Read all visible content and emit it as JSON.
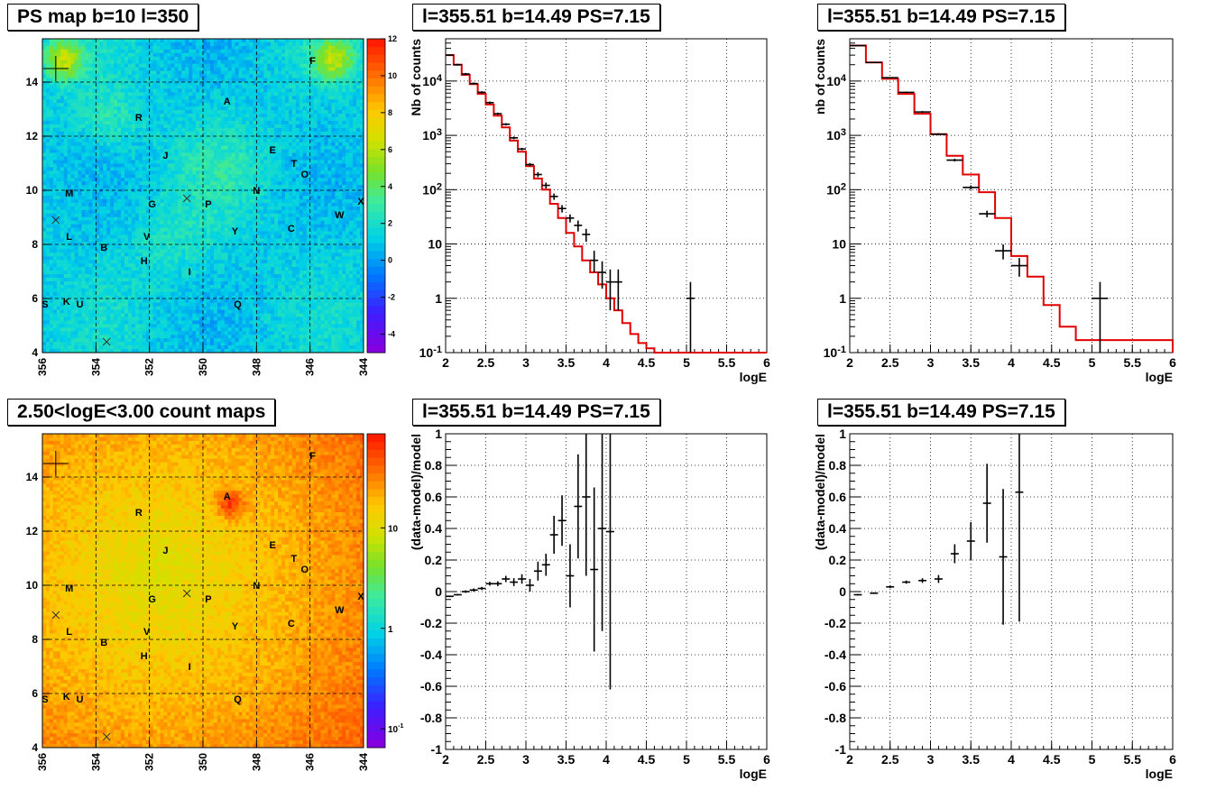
{
  "panels": {
    "map1_title": "PS map b=10 l=350",
    "map2_title": "2.50<logE<3.00 count maps",
    "spec_title": "l=355.51 b=14.49 PS=7.15"
  },
  "chart_data": [
    {
      "type": "heatmap",
      "title": "PS map b=10 l=350",
      "xlim": [
        356,
        344
      ],
      "ylim": [
        4,
        15.6
      ],
      "x_ticks": [
        "356",
        "354",
        "352",
        "350",
        "348",
        "346",
        "344"
      ],
      "y_ticks": [
        "4",
        "6",
        "8",
        "10",
        "12",
        "14"
      ],
      "colorbar_ticks": [
        "-4",
        "-2",
        "0",
        "2",
        "4",
        "6",
        "8",
        "10",
        "12"
      ],
      "colorbar_range": [
        -5,
        12
      ],
      "source_labels": [
        {
          "text": "F",
          "l": 345.9,
          "b": 14.8
        },
        {
          "text": "A",
          "l": 349.1,
          "b": 13.3
        },
        {
          "text": "R",
          "l": 352.4,
          "b": 12.7
        },
        {
          "text": "J",
          "l": 351.4,
          "b": 11.3
        },
        {
          "text": "E",
          "l": 347.4,
          "b": 11.5
        },
        {
          "text": "T",
          "l": 346.6,
          "b": 11.0
        },
        {
          "text": "O",
          "l": 346.2,
          "b": 10.6
        },
        {
          "text": "M",
          "l": 355.0,
          "b": 9.9
        },
        {
          "text": "N",
          "l": 348.0,
          "b": 10.0
        },
        {
          "text": "G",
          "l": 351.9,
          "b": 9.5
        },
        {
          "text": "P",
          "l": 349.8,
          "b": 9.5
        },
        {
          "text": "X",
          "l": 344.1,
          "b": 9.6
        },
        {
          "text": "W",
          "l": 344.9,
          "b": 9.1
        },
        {
          "text": "C",
          "l": 346.7,
          "b": 8.6
        },
        {
          "text": "Y",
          "l": 348.8,
          "b": 8.5
        },
        {
          "text": "V",
          "l": 352.1,
          "b": 8.3
        },
        {
          "text": "L",
          "l": 355.0,
          "b": 8.3
        },
        {
          "text": "B",
          "l": 353.7,
          "b": 7.9
        },
        {
          "text": "H",
          "l": 352.2,
          "b": 7.4
        },
        {
          "text": "I",
          "l": 350.5,
          "b": 7.0
        },
        {
          "text": "S",
          "l": 355.9,
          "b": 5.8
        },
        {
          "text": "K",
          "l": 355.1,
          "b": 5.9
        },
        {
          "text": "U",
          "l": 354.6,
          "b": 5.8
        },
        {
          "text": "Q",
          "l": 348.7,
          "b": 5.8
        }
      ],
      "markers_x": [
        {
          "l": 355.5,
          "b": 8.9
        },
        {
          "l": 350.6,
          "b": 9.7
        },
        {
          "l": 353.6,
          "b": 4.4
        }
      ],
      "marker_plus": {
        "l": 355.5,
        "b": 14.5
      },
      "colormap": "rainbow"
    },
    {
      "type": "heatmap",
      "title": "2.50<logE<3.00 count maps",
      "xlim": [
        356,
        344
      ],
      "ylim": [
        4,
        15.6
      ],
      "x_ticks": [
        "356",
        "354",
        "352",
        "350",
        "348",
        "346",
        "344"
      ],
      "y_ticks": [
        "4",
        "6",
        "8",
        "10",
        "12",
        "14"
      ],
      "colorbar_ticks": [
        "10",
        "1",
        "10^-1"
      ],
      "colorbar_scale": "log",
      "colormap": "rainbow"
    },
    {
      "type": "line",
      "title": "l=355.51 b=14.49 PS=7.15",
      "xlabel": "logE",
      "ylabel": "Nb of counts",
      "xlim": [
        2,
        6
      ],
      "ylim": [
        0.1,
        60000
      ],
      "y_scale": "log",
      "grid": true,
      "x_ticks": [
        "2",
        "2.5",
        "3",
        "3.5",
        "4",
        "4.5",
        "5",
        "5.5",
        "6"
      ],
      "y_ticks": [
        "10^-1",
        "1",
        "10",
        "10^2",
        "10^3",
        "10^4"
      ],
      "model_edges": [
        2.0,
        2.1,
        2.2,
        2.3,
        2.4,
        2.5,
        2.6,
        2.7,
        2.8,
        2.9,
        3.0,
        3.1,
        3.2,
        3.3,
        3.4,
        3.5,
        3.6,
        3.7,
        3.8,
        3.9,
        4.0,
        4.1,
        4.2,
        4.3,
        4.4,
        4.5,
        4.6,
        4.7,
        6.0
      ],
      "model_values": [
        30000,
        20000,
        13000,
        8800,
        5800,
        3700,
        2300,
        1400,
        800,
        500,
        270,
        160,
        100,
        55,
        30,
        16,
        9,
        5,
        3,
        1.8,
        1.0,
        0.6,
        0.35,
        0.22,
        0.15,
        0.12,
        0.1,
        0.1
      ],
      "data_points": [
        {
          "x": 2.05,
          "y": 30000,
          "lo": 29000,
          "hi": 31000
        },
        {
          "x": 2.15,
          "y": 20000,
          "lo": 19200,
          "hi": 20800
        },
        {
          "x": 2.25,
          "y": 13500,
          "lo": 12900,
          "hi": 14100
        },
        {
          "x": 2.35,
          "y": 9000,
          "lo": 8600,
          "hi": 9400
        },
        {
          "x": 2.45,
          "y": 6200,
          "lo": 5900,
          "hi": 6500
        },
        {
          "x": 2.55,
          "y": 4000,
          "lo": 3800,
          "hi": 4200
        },
        {
          "x": 2.65,
          "y": 2500,
          "lo": 2380,
          "hi": 2620
        },
        {
          "x": 2.75,
          "y": 1600,
          "lo": 1520,
          "hi": 1680
        },
        {
          "x": 2.85,
          "y": 900,
          "lo": 850,
          "hi": 950
        },
        {
          "x": 2.95,
          "y": 560,
          "lo": 530,
          "hi": 590
        },
        {
          "x": 3.05,
          "y": 290,
          "lo": 270,
          "hi": 310
        },
        {
          "x": 3.15,
          "y": 190,
          "lo": 170,
          "hi": 210
        },
        {
          "x": 3.25,
          "y": 120,
          "lo": 105,
          "hi": 135
        },
        {
          "x": 3.35,
          "y": 75,
          "lo": 65,
          "hi": 85
        },
        {
          "x": 3.45,
          "y": 45,
          "lo": 38,
          "hi": 52
        },
        {
          "x": 3.55,
          "y": 30,
          "lo": 25,
          "hi": 35
        },
        {
          "x": 3.65,
          "y": 22,
          "lo": 17,
          "hi": 27
        },
        {
          "x": 3.75,
          "y": 15,
          "lo": 11,
          "hi": 19
        },
        {
          "x": 3.85,
          "y": 5,
          "lo": 3,
          "hi": 7.5
        },
        {
          "x": 3.95,
          "y": 3,
          "lo": 1.5,
          "hi": 4.8
        },
        {
          "x": 4.05,
          "y": 2,
          "lo": 0.6,
          "hi": 3.4
        },
        {
          "x": 4.15,
          "y": 2,
          "lo": 0.6,
          "hi": 3.4
        },
        {
          "x": 5.05,
          "y": 1,
          "lo": 0.1,
          "hi": 2.0
        }
      ]
    },
    {
      "type": "line",
      "title": "l=355.51 b=14.49 PS=7.15",
      "xlabel": "logE",
      "ylabel": "nb of counts",
      "xlim": [
        2,
        6
      ],
      "ylim": [
        0.1,
        60000
      ],
      "y_scale": "log",
      "grid": true,
      "x_ticks": [
        "2",
        "2.5",
        "3",
        "3.5",
        "4",
        "4.5",
        "5",
        "5.5",
        "6"
      ],
      "y_ticks": [
        "10^-1",
        "1",
        "10",
        "10^2",
        "10^3",
        "10^4"
      ],
      "model_edges": [
        2.0,
        2.2,
        2.4,
        2.6,
        2.8,
        3.0,
        3.2,
        3.4,
        3.6,
        3.8,
        4.0,
        4.2,
        4.4,
        4.6,
        4.8,
        6.0
      ],
      "model_values": [
        45000,
        22000,
        11000,
        5800,
        2500,
        1050,
        420,
        190,
        90,
        30,
        6,
        2.5,
        0.75,
        0.3,
        0.17,
        0.1
      ],
      "data_points": [
        {
          "x": 2.1,
          "y": 45000,
          "lo": 44000,
          "hi": 46000
        },
        {
          "x": 2.3,
          "y": 22000,
          "lo": 21500,
          "hi": 22500
        },
        {
          "x": 2.5,
          "y": 11500,
          "lo": 11200,
          "hi": 11800
        },
        {
          "x": 2.7,
          "y": 6200,
          "lo": 6000,
          "hi": 6400
        },
        {
          "x": 2.9,
          "y": 2700,
          "lo": 2600,
          "hi": 2800
        },
        {
          "x": 3.1,
          "y": 1050,
          "lo": 1000,
          "hi": 1100
        },
        {
          "x": 3.3,
          "y": 350,
          "lo": 330,
          "hi": 370
        },
        {
          "x": 3.5,
          "y": 110,
          "lo": 100,
          "hi": 120
        },
        {
          "x": 3.7,
          "y": 36,
          "lo": 31,
          "hi": 41
        },
        {
          "x": 3.9,
          "y": 7.5,
          "lo": 5.2,
          "hi": 9.8
        },
        {
          "x": 4.1,
          "y": 4,
          "lo": 2.5,
          "hi": 5.5
        },
        {
          "x": 5.1,
          "y": 1,
          "lo": 0.1,
          "hi": 2.0
        }
      ]
    },
    {
      "type": "scatter",
      "title": "l=355.51 b=14.49 PS=7.15",
      "xlabel": "logE",
      "ylabel": "(data-model)/model",
      "xlim": [
        2,
        6
      ],
      "ylim": [
        -1,
        1
      ],
      "grid": true,
      "x_ticks": [
        "2",
        "2.5",
        "3",
        "3.5",
        "4",
        "4.5",
        "5",
        "5.5",
        "6"
      ],
      "y_ticks": [
        "-1",
        "-0.8",
        "-0.6",
        "-0.4",
        "-0.2",
        "0",
        "0.2",
        "0.4",
        "0.6",
        "0.8",
        "1"
      ],
      "data_points": [
        {
          "x": 2.05,
          "y": -0.03,
          "err": 0.005
        },
        {
          "x": 2.15,
          "y": -0.02,
          "err": 0.005
        },
        {
          "x": 2.25,
          "y": 0.0,
          "err": 0.008
        },
        {
          "x": 2.35,
          "y": 0.01,
          "err": 0.01
        },
        {
          "x": 2.45,
          "y": 0.02,
          "err": 0.01
        },
        {
          "x": 2.55,
          "y": 0.05,
          "err": 0.012
        },
        {
          "x": 2.65,
          "y": 0.05,
          "err": 0.015
        },
        {
          "x": 2.75,
          "y": 0.08,
          "err": 0.02
        },
        {
          "x": 2.85,
          "y": 0.06,
          "err": 0.025
        },
        {
          "x": 2.95,
          "y": 0.08,
          "err": 0.03
        },
        {
          "x": 3.05,
          "y": 0.04,
          "err": 0.04
        },
        {
          "x": 3.15,
          "y": 0.13,
          "err": 0.06
        },
        {
          "x": 3.25,
          "y": 0.17,
          "err": 0.07
        },
        {
          "x": 3.35,
          "y": 0.36,
          "err": 0.12
        },
        {
          "x": 3.45,
          "y": 0.45,
          "err": 0.16
        },
        {
          "x": 3.55,
          "y": 0.1,
          "err": 0.2
        },
        {
          "x": 3.65,
          "y": 0.54,
          "err": 0.33
        },
        {
          "x": 3.75,
          "y": 0.6,
          "err": 0.5
        },
        {
          "x": 3.85,
          "y": 0.14,
          "err": 0.52
        },
        {
          "x": 3.95,
          "y": 0.4,
          "err": 0.65
        },
        {
          "x": 4.05,
          "y": 0.38,
          "err": 1.0
        }
      ]
    },
    {
      "type": "scatter",
      "title": "l=355.51 b=14.49 PS=7.15",
      "xlabel": "logE",
      "ylabel": "(data-model)/model",
      "xlim": [
        2,
        6
      ],
      "ylim": [
        -1,
        1
      ],
      "grid": true,
      "x_ticks": [
        "2",
        "2.5",
        "3",
        "3.5",
        "4",
        "4.5",
        "5",
        "5.5",
        "6"
      ],
      "y_ticks": [
        "-1",
        "-0.8",
        "-0.6",
        "-0.4",
        "-0.2",
        "0",
        "0.2",
        "0.4",
        "0.6",
        "0.8",
        "1"
      ],
      "data_points": [
        {
          "x": 2.1,
          "y": -0.02,
          "err": 0.005
        },
        {
          "x": 2.3,
          "y": -0.01,
          "err": 0.005
        },
        {
          "x": 2.5,
          "y": 0.03,
          "err": 0.008
        },
        {
          "x": 2.7,
          "y": 0.06,
          "err": 0.01
        },
        {
          "x": 2.9,
          "y": 0.07,
          "err": 0.015
        },
        {
          "x": 3.1,
          "y": 0.08,
          "err": 0.025
        },
        {
          "x": 3.3,
          "y": 0.24,
          "err": 0.06
        },
        {
          "x": 3.5,
          "y": 0.32,
          "err": 0.12
        },
        {
          "x": 3.7,
          "y": 0.56,
          "err": 0.25
        },
        {
          "x": 3.9,
          "y": 0.22,
          "err": 0.43
        },
        {
          "x": 4.1,
          "y": 0.63,
          "err": 0.82
        }
      ]
    }
  ]
}
